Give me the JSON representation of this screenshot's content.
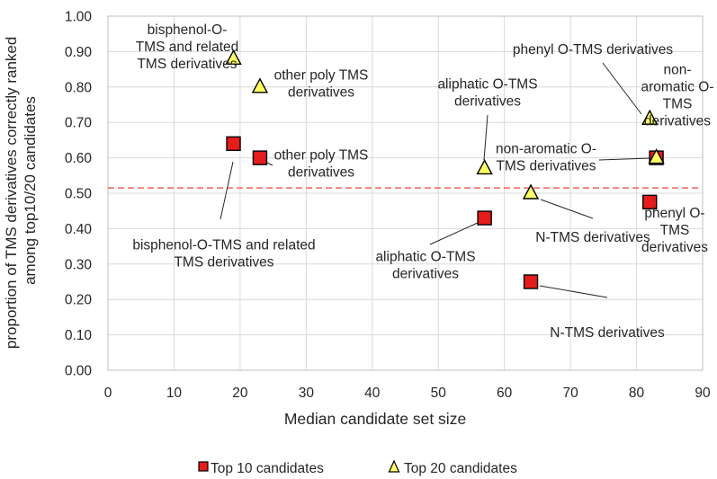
{
  "chart_data": {
    "type": "scatter",
    "xlabel": "Median candidate set size",
    "ylabel_lines": [
      "proportion of TMS derivatives correctly ranked",
      "among top10/20 candidates"
    ],
    "xlim": [
      0,
      90
    ],
    "ylim": [
      0,
      1
    ],
    "x_ticks": [
      0,
      10,
      20,
      30,
      40,
      50,
      60,
      70,
      80,
      90
    ],
    "y_ticks": [
      "0.00",
      "0.10",
      "0.20",
      "0.30",
      "0.40",
      "0.50",
      "0.60",
      "0.70",
      "0.80",
      "0.90",
      "1.00"
    ],
    "grid": true,
    "legend_position": "bottom",
    "reference_line": {
      "y": 0.515,
      "style": "dashed",
      "color": "#e8443a"
    },
    "series": [
      {
        "name": "Top 10 candidates",
        "marker": "square",
        "color": "#e51c1c",
        "points": [
          {
            "x": 19,
            "y": 0.64,
            "label": [
              "bisphenol-O-TMS and related",
              "TMS derivatives"
            ]
          },
          {
            "x": 23,
            "y": 0.6,
            "label": [
              "other poly TMS",
              "derivatives"
            ]
          },
          {
            "x": 57,
            "y": 0.43,
            "label": [
              "aliphatic O-TMS",
              "derivatives"
            ]
          },
          {
            "x": 64,
            "y": 0.25,
            "label": [
              "N-TMS derivatives"
            ]
          },
          {
            "x": 82,
            "y": 0.475,
            "label": [
              "phenyl O-",
              "TMS",
              "derivatives"
            ]
          },
          {
            "x": 83,
            "y": 0.6,
            "label": [
              "non-aromatic O-",
              "TMS derivatives"
            ]
          }
        ]
      },
      {
        "name": "Top 20 candidates",
        "marker": "triangle",
        "color": "#ffff66",
        "points": [
          {
            "x": 19,
            "y": 0.88,
            "label": [
              "bisphenol-O-",
              "TMS and related",
              "TMS derivatives"
            ]
          },
          {
            "x": 23,
            "y": 0.8,
            "label": [
              "other poly TMS",
              "derivatives"
            ]
          },
          {
            "x": 57,
            "y": 0.57,
            "label": [
              "aliphatic O-TMS",
              "derivatives"
            ]
          },
          {
            "x": 64,
            "y": 0.5,
            "label": [
              "N-TMS derivatives"
            ]
          },
          {
            "x": 82,
            "y": 0.71,
            "label": [
              "phenyl O-TMS derivatives"
            ]
          },
          {
            "x": 83,
            "y": 0.6,
            "label": [
              "non-",
              "aromatic O-",
              "TMS",
              "derivatives"
            ]
          }
        ]
      }
    ]
  }
}
